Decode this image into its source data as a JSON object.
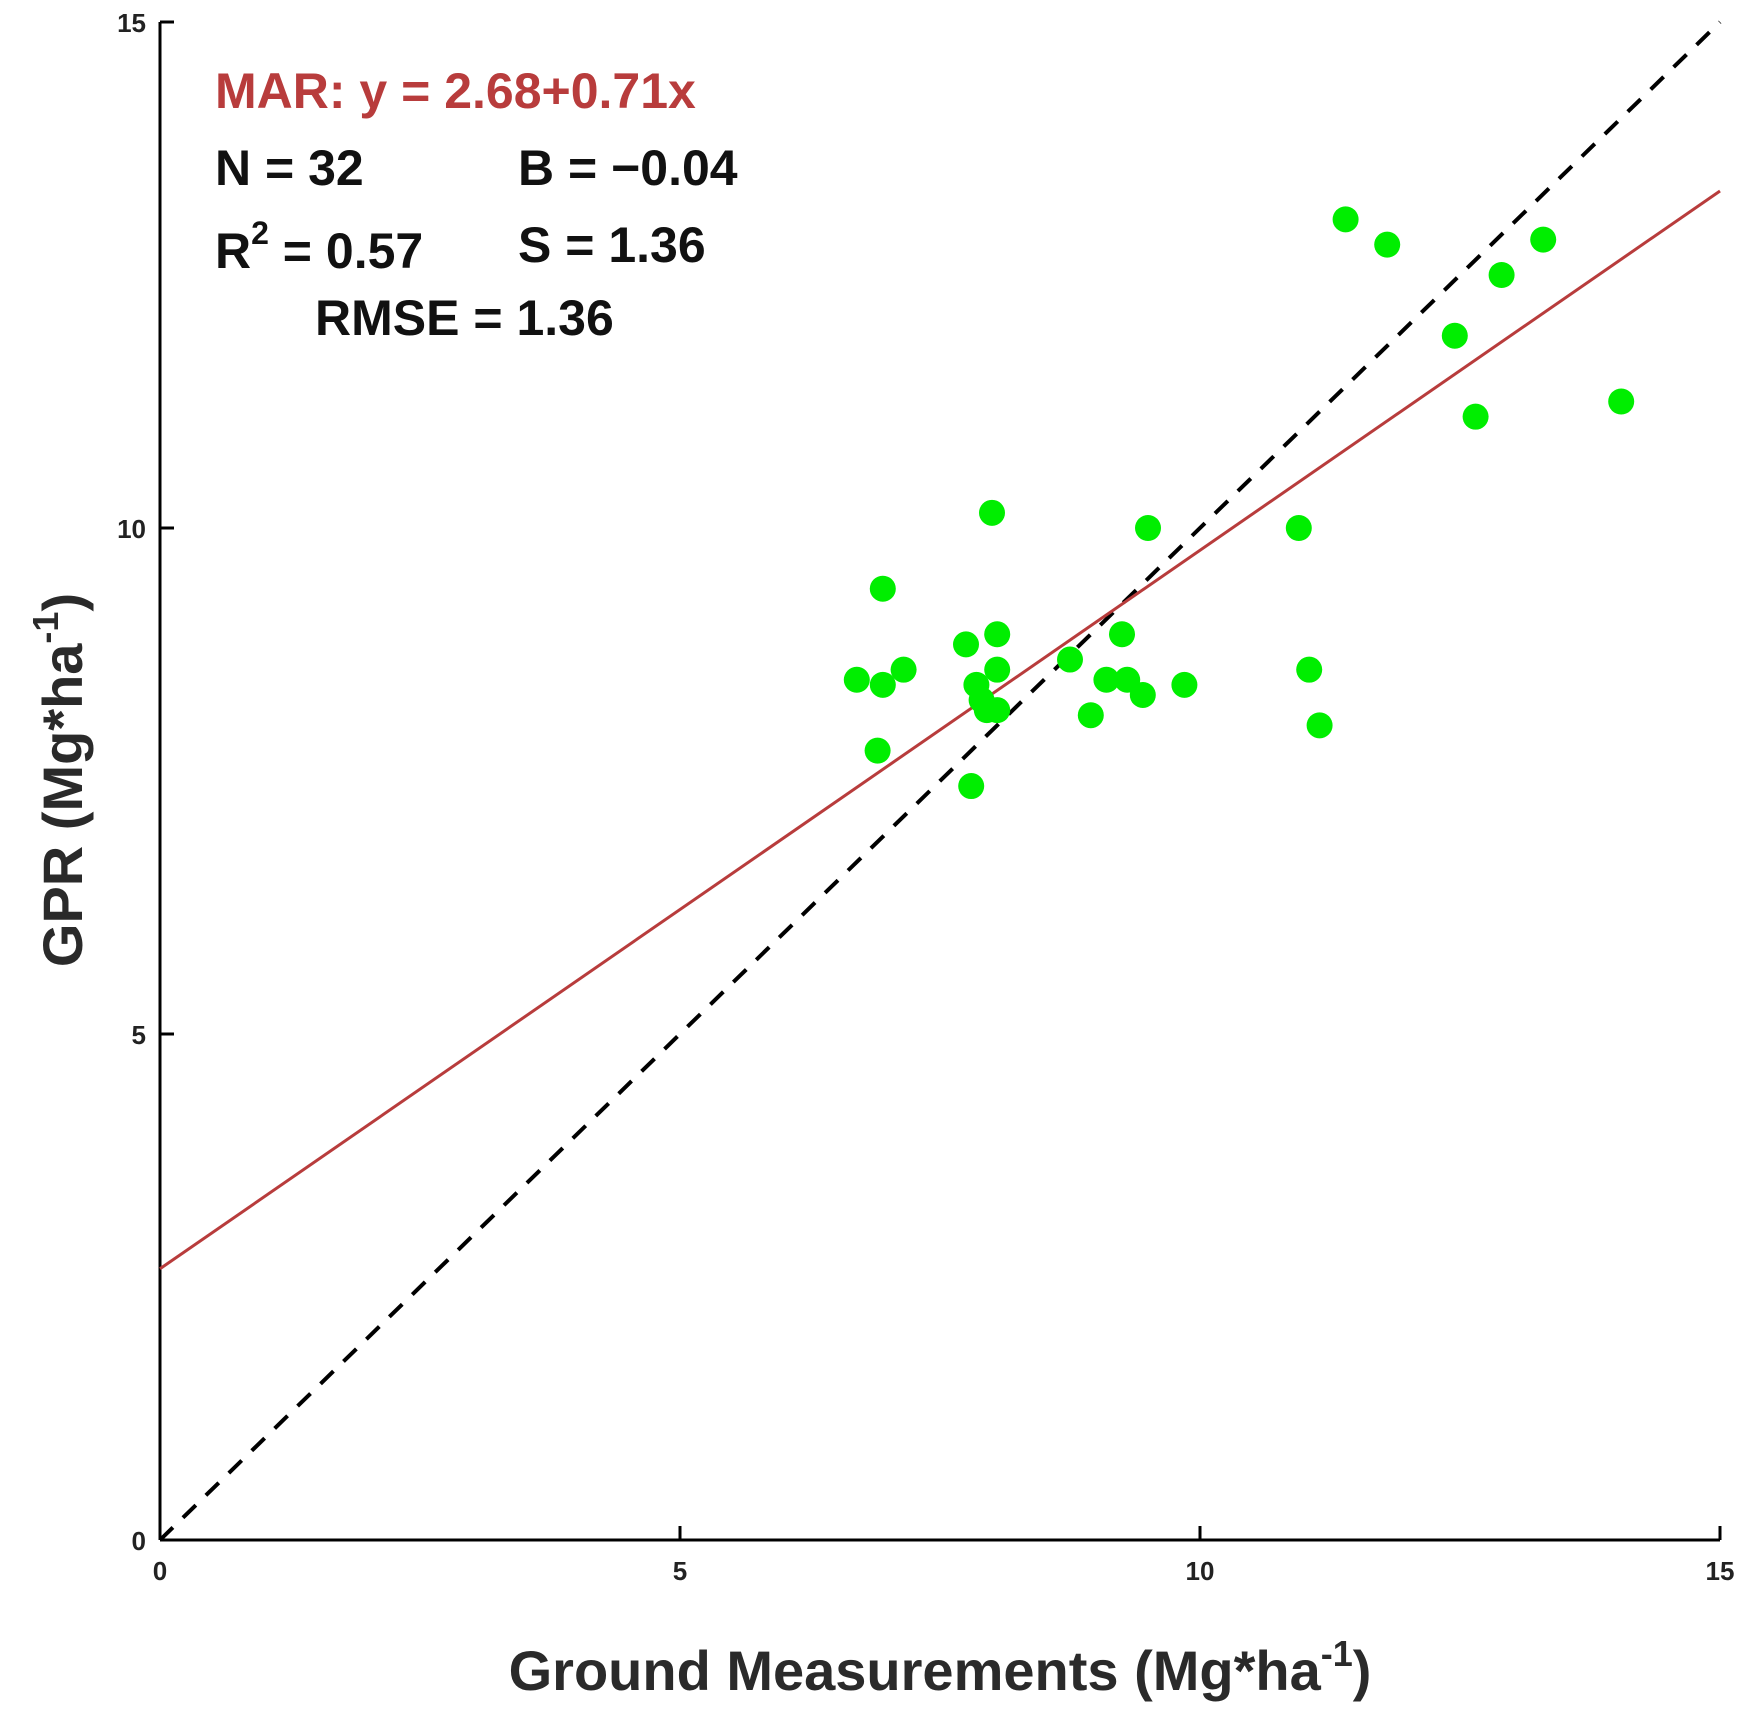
{
  "chart_data": {
    "type": "scatter",
    "xlabel": "Ground Measurements (Mg*ha",
    "xlabel_sup": "-1",
    "xlabel_end": ")",
    "ylabel": "GPR (Mg*ha",
    "ylabel_sup": "-1",
    "ylabel_end": ")",
    "xlim": [
      0,
      15
    ],
    "ylim": [
      0,
      15
    ],
    "xticks": [
      "0",
      "5",
      "10",
      "15"
    ],
    "yticks": [
      "0",
      "5",
      "10",
      "15"
    ],
    "point_color": "#00ee00",
    "fit_color": "#b83c3c",
    "reference_color": "#000000",
    "fit_line": {
      "intercept": 2.68,
      "slope": 0.71
    },
    "reference_line": {
      "intercept": 0,
      "slope": 1
    },
    "annotations": {
      "equation": "MAR: y = 2.68+0.71x",
      "n": "N = 32",
      "b": "B = −0.04",
      "r2_prefix": "R",
      "r2_sup": "2",
      "r2_suffix": " = 0.57",
      "s": "S = 1.36",
      "rmse": "RMSE = 1.36"
    },
    "points": [
      {
        "x": 6.7,
        "y": 8.5
      },
      {
        "x": 6.95,
        "y": 8.45
      },
      {
        "x": 7.15,
        "y": 8.6
      },
      {
        "x": 6.9,
        "y": 7.8
      },
      {
        "x": 6.95,
        "y": 9.4
      },
      {
        "x": 7.75,
        "y": 8.85
      },
      {
        "x": 7.85,
        "y": 8.45
      },
      {
        "x": 7.95,
        "y": 8.2
      },
      {
        "x": 8.05,
        "y": 8.2
      },
      {
        "x": 8.05,
        "y": 8.6
      },
      {
        "x": 8.05,
        "y": 8.95
      },
      {
        "x": 8.0,
        "y": 10.15
      },
      {
        "x": 7.8,
        "y": 7.45
      },
      {
        "x": 8.75,
        "y": 8.7
      },
      {
        "x": 8.95,
        "y": 8.15
      },
      {
        "x": 9.1,
        "y": 8.5
      },
      {
        "x": 9.3,
        "y": 8.5
      },
      {
        "x": 9.25,
        "y": 8.95
      },
      {
        "x": 9.45,
        "y": 8.35
      },
      {
        "x": 9.5,
        "y": 10.0
      },
      {
        "x": 9.85,
        "y": 8.45
      },
      {
        "x": 10.95,
        "y": 10.0
      },
      {
        "x": 11.05,
        "y": 8.6
      },
      {
        "x": 11.15,
        "y": 8.05
      },
      {
        "x": 11.4,
        "y": 13.05
      },
      {
        "x": 11.8,
        "y": 12.8
      },
      {
        "x": 12.45,
        "y": 11.9
      },
      {
        "x": 12.65,
        "y": 11.1
      },
      {
        "x": 12.9,
        "y": 12.5
      },
      {
        "x": 13.3,
        "y": 12.85
      },
      {
        "x": 14.05,
        "y": 11.25
      },
      {
        "x": 7.9,
        "y": 8.3
      }
    ]
  }
}
